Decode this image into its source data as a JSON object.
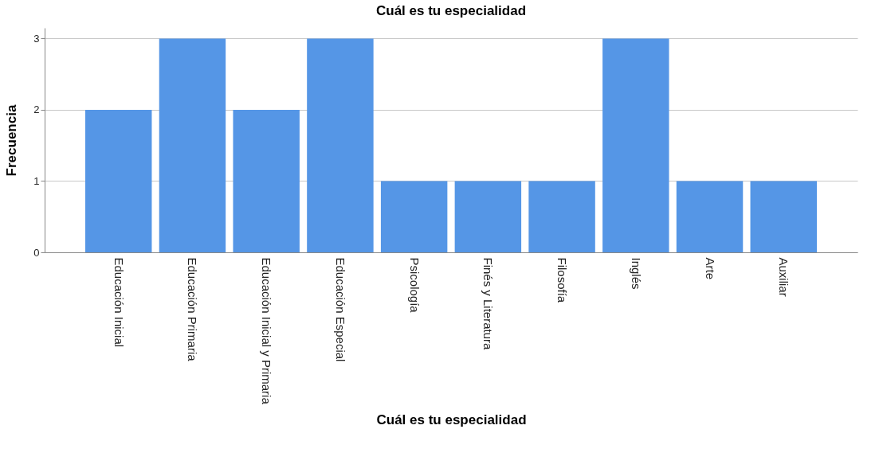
{
  "chart_data": {
    "type": "bar",
    "title": "Cuál es tu especialidad",
    "xlabel": "Cuál es tu especialidad",
    "ylabel": "Frecuencia",
    "categories": [
      "Educación Inicial",
      "Educación Primaria",
      "Educación Inicial y Primaria",
      "Educación Especial",
      "Psicología",
      "Finés y Literatura",
      "Filosofía",
      "Inglés",
      "Arte",
      "Auxiliar"
    ],
    "values": [
      2,
      3,
      2,
      3,
      1,
      1,
      1,
      3,
      1,
      1
    ],
    "color": "#5596e6",
    "ylim": [
      0,
      3.15
    ],
    "yticks": [
      0,
      1,
      2,
      3
    ],
    "grid": "y"
  }
}
